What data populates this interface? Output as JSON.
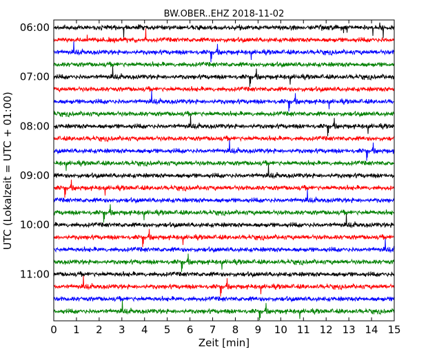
{
  "chart_data": {
    "type": "line",
    "title": "BW.OBER..EHZ 2018-11-02",
    "xlabel": "Zeit  [min]",
    "ylabel": "UTC (Lokalzeit = UTC + 01:00)",
    "xlim": [
      0,
      15
    ],
    "x_ticks": [
      "0",
      "1",
      "2",
      "3",
      "4",
      "5",
      "6",
      "7",
      "8",
      "9",
      "10",
      "11",
      "12",
      "13",
      "14",
      "15"
    ],
    "y_ticks": [
      "06:00",
      "07:00",
      "08:00",
      "09:00",
      "10:00",
      "11:00"
    ],
    "trace_colors": [
      "#000000",
      "#ff0000",
      "#0000ff",
      "#008000"
    ],
    "trace_count": 24,
    "trace_interval_minutes": 15,
    "last_trace_end_minute": 15,
    "grid": false,
    "legend": "none"
  }
}
